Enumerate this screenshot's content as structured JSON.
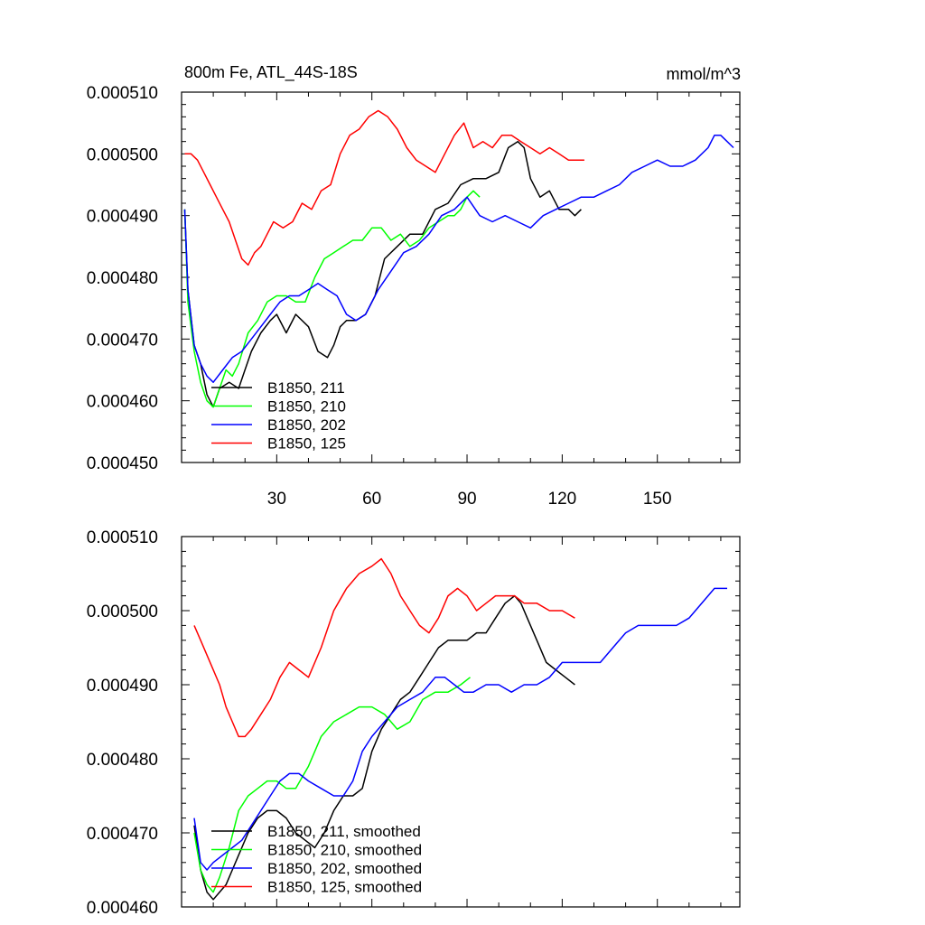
{
  "chart_data": [
    {
      "type": "line",
      "title": "800m Fe, ATL_44S-18S",
      "units": "mmol/m^3",
      "xlabel": "",
      "ylabel": "",
      "xlim": [
        0,
        176
      ],
      "ylim": [
        0.00045,
        0.00051
      ],
      "xticks": [
        30,
        60,
        90,
        120,
        150
      ],
      "xtick_labels": [
        "30",
        "60",
        "90",
        "120",
        "150"
      ],
      "yticks": [
        0.00045,
        0.00046,
        0.00047,
        0.00048,
        0.00049,
        0.0005,
        0.00051
      ],
      "ytick_labels": [
        "0.000450",
        "0.000460",
        "0.000470",
        "0.000480",
        "0.000490",
        "0.000500",
        "0.000510"
      ],
      "legend_position": "bottom-left",
      "grid": false,
      "series": [
        {
          "name": "B1850, 211",
          "color": "#000000",
          "x": [
            1,
            2,
            4,
            6,
            8,
            10,
            12,
            15,
            18,
            20,
            22,
            25,
            28,
            30,
            33,
            36,
            40,
            43,
            46,
            48,
            50,
            52,
            55,
            58,
            61,
            64,
            68,
            72,
            76,
            80,
            84,
            88,
            92,
            96,
            100,
            103,
            106,
            108,
            110,
            113,
            116,
            119,
            122,
            124,
            126
          ],
          "y": [
            0.000491,
            0.000478,
            0.000469,
            0.000466,
            0.000461,
            0.000459,
            0.000462,
            0.000463,
            0.000462,
            0.000465,
            0.000468,
            0.000471,
            0.000473,
            0.000474,
            0.000471,
            0.000474,
            0.000472,
            0.000468,
            0.000467,
            0.000469,
            0.000472,
            0.000473,
            0.000473,
            0.000474,
            0.000477,
            0.000483,
            0.000485,
            0.000487,
            0.000487,
            0.000491,
            0.000492,
            0.000495,
            0.000496,
            0.000496,
            0.000497,
            0.000501,
            0.000502,
            0.000501,
            0.000496,
            0.000493,
            0.000494,
            0.000491,
            0.000491,
            0.00049,
            0.000491
          ]
        },
        {
          "name": "B1850, 210",
          "color": "#00ff00",
          "x": [
            1,
            2,
            4,
            6,
            8,
            10,
            12,
            14,
            16,
            18,
            21,
            24,
            27,
            30,
            33,
            36,
            39,
            42,
            45,
            48,
            51,
            54,
            57,
            60,
            63,
            66,
            69,
            72,
            75,
            78,
            81,
            84,
            86,
            88,
            90,
            92,
            94
          ],
          "y": [
            0.000491,
            0.000476,
            0.000468,
            0.000463,
            0.00046,
            0.000459,
            0.000462,
            0.000465,
            0.000464,
            0.000466,
            0.000471,
            0.000473,
            0.000476,
            0.000477,
            0.000477,
            0.000476,
            0.000476,
            0.00048,
            0.000483,
            0.000484,
            0.000485,
            0.000486,
            0.000486,
            0.000488,
            0.000488,
            0.000486,
            0.000487,
            0.000485,
            0.000486,
            0.000488,
            0.000489,
            0.00049,
            0.00049,
            0.000491,
            0.000493,
            0.000494,
            0.000493
          ]
        },
        {
          "name": "B1850, 202",
          "color": "#0000ff",
          "x": [
            1,
            2,
            4,
            6,
            8,
            10,
            13,
            16,
            19,
            22,
            25,
            28,
            31,
            34,
            37,
            40,
            43,
            46,
            49,
            52,
            55,
            58,
            62,
            66,
            70,
            74,
            78,
            82,
            86,
            90,
            94,
            98,
            102,
            106,
            110,
            114,
            118,
            122,
            126,
            130,
            134,
            138,
            142,
            146,
            150,
            154,
            158,
            162,
            166,
            168,
            170,
            172,
            174
          ],
          "y": [
            0.000491,
            0.000478,
            0.000469,
            0.000466,
            0.000464,
            0.000463,
            0.000465,
            0.000467,
            0.000468,
            0.00047,
            0.000472,
            0.000474,
            0.000476,
            0.000477,
            0.000477,
            0.000478,
            0.000479,
            0.000478,
            0.000477,
            0.000474,
            0.000473,
            0.000474,
            0.000478,
            0.000481,
            0.000484,
            0.000485,
            0.000487,
            0.00049,
            0.000491,
            0.000493,
            0.00049,
            0.000489,
            0.00049,
            0.000489,
            0.000488,
            0.00049,
            0.000491,
            0.000492,
            0.000493,
            0.000493,
            0.000494,
            0.000495,
            0.000497,
            0.000498,
            0.000499,
            0.000498,
            0.000498,
            0.000499,
            0.000501,
            0.000503,
            0.000503,
            0.000502,
            0.000501
          ]
        },
        {
          "name": "B1850, 125",
          "color": "#ff0000",
          "x": [
            1,
            3,
            5,
            7,
            9,
            11,
            13,
            15,
            17,
            19,
            21,
            23,
            25,
            27,
            29,
            32,
            35,
            38,
            41,
            44,
            47,
            50,
            53,
            56,
            59,
            62,
            65,
            68,
            71,
            74,
            77,
            80,
            83,
            86,
            89,
            92,
            95,
            98,
            101,
            104,
            107,
            110,
            113,
            116,
            119,
            122,
            125,
            127
          ],
          "y": [
            0.0005,
            0.0005,
            0.000499,
            0.000497,
            0.000495,
            0.000493,
            0.000491,
            0.000489,
            0.000486,
            0.000483,
            0.000482,
            0.000484,
            0.000485,
            0.000487,
            0.000489,
            0.000488,
            0.000489,
            0.000492,
            0.000491,
            0.000494,
            0.000495,
            0.0005,
            0.000503,
            0.000504,
            0.000506,
            0.000507,
            0.000506,
            0.000504,
            0.000501,
            0.000499,
            0.000498,
            0.000497,
            0.0005,
            0.000503,
            0.000505,
            0.000501,
            0.000502,
            0.000501,
            0.000503,
            0.000503,
            0.000502,
            0.000501,
            0.0005,
            0.000501,
            0.0005,
            0.000499,
            0.000499,
            0.000499
          ]
        }
      ]
    },
    {
      "type": "line",
      "title": "",
      "xlabel": "",
      "ylabel": "",
      "xlim": [
        0,
        176
      ],
      "ylim": [
        0.00046,
        0.00051
      ],
      "xticks": [
        30,
        60,
        90,
        120,
        150
      ],
      "xtick_labels": [],
      "yticks": [
        0.00046,
        0.00047,
        0.00048,
        0.00049,
        0.0005,
        0.00051
      ],
      "ytick_labels": [
        "0.000460",
        "0.000470",
        "0.000480",
        "0.000490",
        "0.000500",
        "0.000510"
      ],
      "legend_position": "bottom-left",
      "grid": false,
      "series": [
        {
          "name": "B1850, 211, smoothed",
          "color": "#000000",
          "x": [
            4,
            6,
            8,
            10,
            12,
            14,
            16,
            18,
            21,
            24,
            27,
            30,
            33,
            36,
            39,
            42,
            45,
            48,
            51,
            54,
            57,
            60,
            63,
            66,
            69,
            72,
            75,
            78,
            81,
            84,
            87,
            90,
            93,
            96,
            99,
            102,
            105,
            107,
            109,
            112,
            115,
            118,
            121,
            124
          ],
          "y": [
            0.000471,
            0.000465,
            0.000462,
            0.000461,
            0.000462,
            0.000463,
            0.000465,
            0.000467,
            0.00047,
            0.000472,
            0.000473,
            0.000473,
            0.000472,
            0.00047,
            0.000469,
            0.000468,
            0.00047,
            0.000473,
            0.000475,
            0.000475,
            0.000476,
            0.000481,
            0.000484,
            0.000486,
            0.000488,
            0.000489,
            0.000491,
            0.000493,
            0.000495,
            0.000496,
            0.000496,
            0.000496,
            0.000497,
            0.000497,
            0.000499,
            0.000501,
            0.000502,
            0.000501,
            0.000499,
            0.000496,
            0.000493,
            0.000492,
            0.000491,
            0.00049
          ]
        },
        {
          "name": "B1850, 210, smoothed",
          "color": "#00ff00",
          "x": [
            4,
            6,
            8,
            10,
            12,
            15,
            18,
            21,
            24,
            27,
            30,
            33,
            36,
            40,
            44,
            48,
            52,
            56,
            60,
            64,
            68,
            72,
            76,
            80,
            84,
            88,
            91
          ],
          "y": [
            0.00047,
            0.000465,
            0.000463,
            0.000462,
            0.000464,
            0.000468,
            0.000473,
            0.000475,
            0.000476,
            0.000477,
            0.000477,
            0.000476,
            0.000476,
            0.000479,
            0.000483,
            0.000485,
            0.000486,
            0.000487,
            0.000487,
            0.000486,
            0.000484,
            0.000485,
            0.000488,
            0.000489,
            0.000489,
            0.00049,
            0.000491
          ]
        },
        {
          "name": "B1850, 202, smoothed",
          "color": "#0000ff",
          "x": [
            4,
            6,
            8,
            10,
            13,
            16,
            19,
            22,
            25,
            28,
            31,
            34,
            37,
            40,
            44,
            48,
            51,
            54,
            57,
            60,
            64,
            68,
            72,
            76,
            80,
            83,
            86,
            89,
            92,
            96,
            100,
            104,
            108,
            112,
            116,
            120,
            124,
            128,
            132,
            136,
            140,
            144,
            148,
            152,
            156,
            160,
            164,
            168,
            172
          ],
          "y": [
            0.000472,
            0.000466,
            0.000465,
            0.000466,
            0.000467,
            0.000468,
            0.000469,
            0.000471,
            0.000473,
            0.000475,
            0.000477,
            0.000478,
            0.000478,
            0.000477,
            0.000476,
            0.000475,
            0.000475,
            0.000477,
            0.000481,
            0.000483,
            0.000485,
            0.000487,
            0.000488,
            0.000489,
            0.000491,
            0.000491,
            0.00049,
            0.000489,
            0.000489,
            0.00049,
            0.00049,
            0.000489,
            0.00049,
            0.00049,
            0.000491,
            0.000493,
            0.000493,
            0.000493,
            0.000493,
            0.000495,
            0.000497,
            0.000498,
            0.000498,
            0.000498,
            0.000498,
            0.000499,
            0.000501,
            0.000503,
            0.000503
          ]
        },
        {
          "name": "B1850, 125, smoothed",
          "color": "#ff0000",
          "x": [
            4,
            6,
            8,
            10,
            12,
            14,
            16,
            18,
            20,
            22,
            25,
            28,
            31,
            34,
            37,
            40,
            44,
            48,
            52,
            56,
            60,
            63,
            66,
            69,
            72,
            75,
            78,
            81,
            84,
            87,
            90,
            93,
            96,
            99,
            102,
            105,
            108,
            112,
            116,
            120,
            124
          ],
          "y": [
            0.000498,
            0.000496,
            0.000494,
            0.000492,
            0.00049,
            0.000487,
            0.000485,
            0.000483,
            0.000483,
            0.000484,
            0.000486,
            0.000488,
            0.000491,
            0.000493,
            0.000492,
            0.000491,
            0.000495,
            0.0005,
            0.000503,
            0.000505,
            0.000506,
            0.000507,
            0.000505,
            0.000502,
            0.0005,
            0.000498,
            0.000497,
            0.000499,
            0.000502,
            0.000503,
            0.000502,
            0.0005,
            0.000501,
            0.000502,
            0.000502,
            0.000502,
            0.000501,
            0.000501,
            0.0005,
            0.0005,
            0.000499
          ]
        }
      ]
    }
  ]
}
